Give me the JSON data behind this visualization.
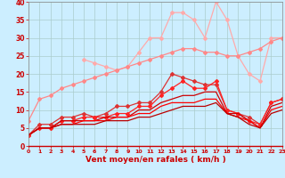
{
  "x": [
    0,
    1,
    2,
    3,
    4,
    5,
    6,
    7,
    8,
    9,
    10,
    11,
    12,
    13,
    14,
    15,
    16,
    17,
    18,
    19,
    20,
    21,
    22,
    23
  ],
  "series": [
    {
      "color": "#ffaaaa",
      "linewidth": 0.9,
      "marker": "D",
      "markersize": 2.0,
      "values": [
        null,
        null,
        null,
        null,
        null,
        24,
        23,
        22,
        21,
        22,
        26,
        30,
        30,
        37,
        37,
        35,
        30,
        40,
        35,
        25,
        20,
        18,
        30,
        30
      ]
    },
    {
      "color": "#ff8888",
      "linewidth": 0.9,
      "marker": "D",
      "markersize": 2.0,
      "values": [
        7,
        13,
        14,
        16,
        17,
        18,
        19,
        20,
        21,
        22,
        23,
        24,
        25,
        26,
        27,
        27,
        26,
        26,
        25,
        25,
        26,
        27,
        29,
        30
      ]
    },
    {
      "color": "#dd3333",
      "linewidth": 0.9,
      "marker": "D",
      "markersize": 2.0,
      "values": [
        3,
        6,
        6,
        8,
        8,
        9,
        8,
        9,
        11,
        11,
        12,
        12,
        15,
        20,
        19,
        18,
        17,
        17,
        10,
        9,
        8,
        6,
        12,
        13
      ]
    },
    {
      "color": "#ff2222",
      "linewidth": 0.9,
      "marker": "D",
      "markersize": 2.0,
      "values": [
        3,
        5,
        5,
        7,
        7,
        8,
        8,
        8,
        9,
        9,
        11,
        11,
        14,
        16,
        18,
        16,
        16,
        18,
        10,
        9,
        7,
        6,
        12,
        13
      ]
    },
    {
      "color": "#cc0000",
      "linewidth": 0.9,
      "marker": null,
      "markersize": 0,
      "values": [
        3,
        5,
        5,
        7,
        7,
        7,
        7,
        8,
        8,
        8,
        10,
        10,
        12,
        13,
        14,
        14,
        15,
        15,
        9,
        9,
        7,
        5,
        11,
        12
      ]
    },
    {
      "color": "#ff0000",
      "linewidth": 0.9,
      "marker": null,
      "markersize": 0,
      "values": [
        3,
        5,
        5,
        6,
        6,
        7,
        7,
        7,
        8,
        8,
        9,
        9,
        11,
        12,
        12,
        12,
        13,
        13,
        9,
        8,
        7,
        5,
        10,
        11
      ]
    },
    {
      "color": "#bb0000",
      "linewidth": 0.9,
      "marker": null,
      "markersize": 0,
      "values": [
        3,
        5,
        5,
        6,
        6,
        6,
        6,
        7,
        7,
        7,
        8,
        8,
        9,
        10,
        11,
        11,
        11,
        12,
        9,
        8,
        6,
        5,
        9,
        10
      ]
    }
  ],
  "xlim": [
    0,
    23
  ],
  "ylim": [
    0,
    40
  ],
  "yticks": [
    0,
    5,
    10,
    15,
    20,
    25,
    30,
    35,
    40
  ],
  "xticks": [
    0,
    1,
    2,
    3,
    4,
    5,
    6,
    7,
    8,
    9,
    10,
    11,
    12,
    13,
    14,
    15,
    16,
    17,
    18,
    19,
    20,
    21,
    22,
    23
  ],
  "xlabel": "Vent moyen/en rafales ( km/h )",
  "xlabel_color": "#cc0000",
  "xlabel_fontsize": 6.5,
  "xtick_fontsize": 4.5,
  "ytick_fontsize": 5.5,
  "bg_color": "#cceeff",
  "grid_color": "#aacccc",
  "tick_color": "#cc0000",
  "spine_color": "#888888"
}
